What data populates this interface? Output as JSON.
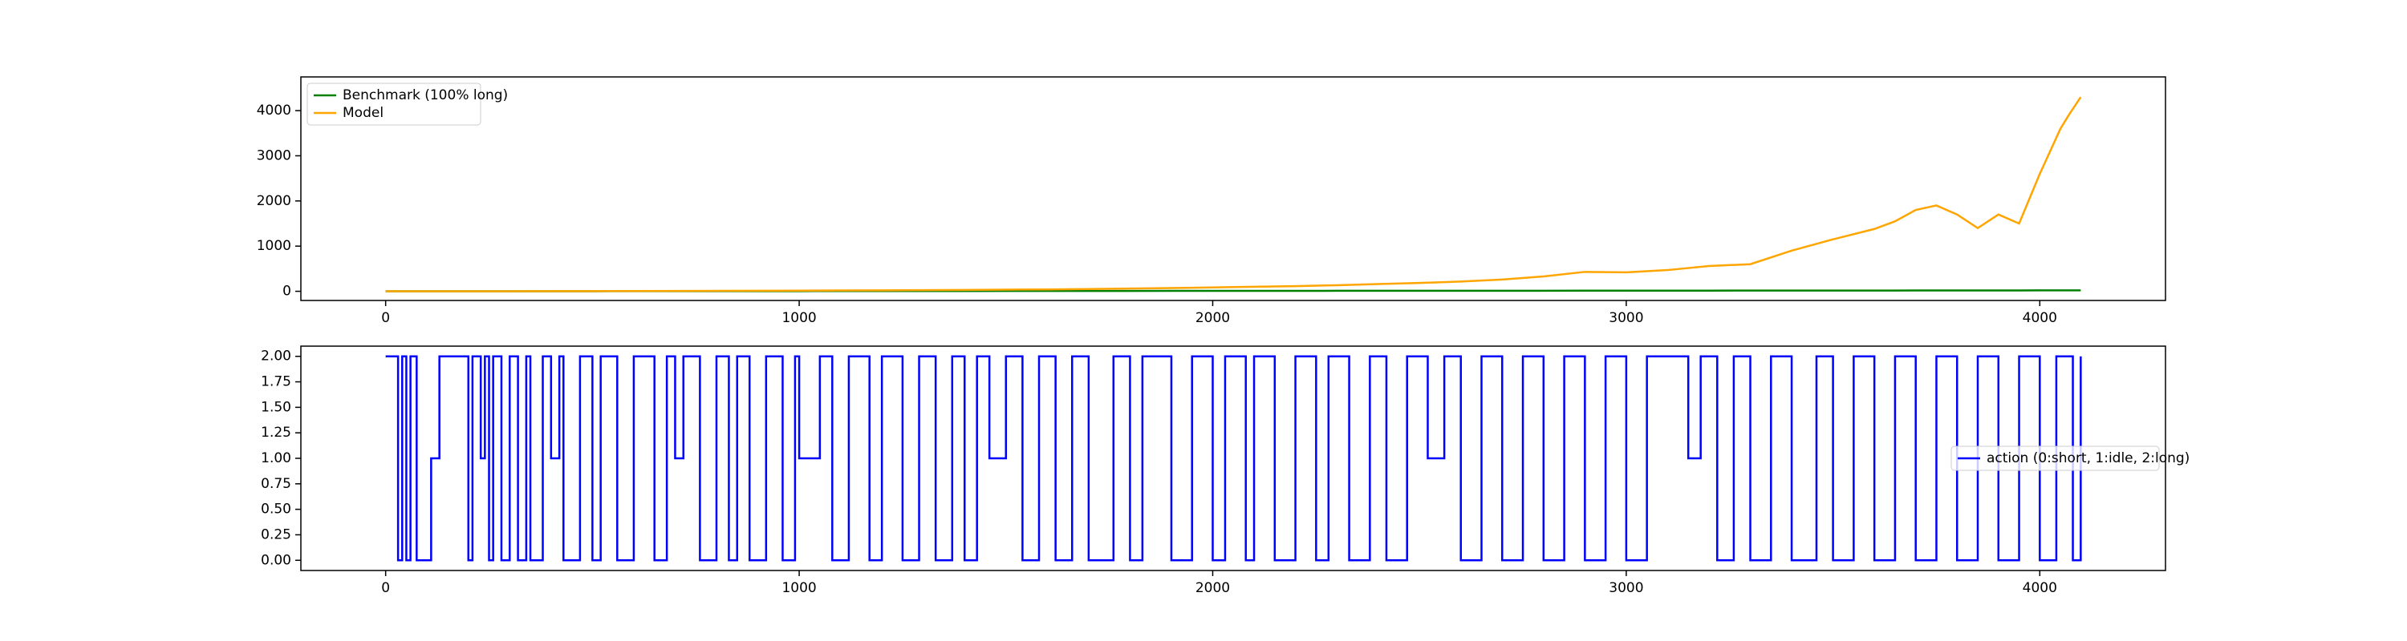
{
  "chart_data": [
    {
      "type": "line",
      "x": [
        0,
        100,
        200,
        300,
        400,
        500,
        600,
        700,
        800,
        900,
        1000,
        1100,
        1200,
        1300,
        1400,
        1500,
        1600,
        1700,
        1800,
        1900,
        2000,
        2100,
        2200,
        2300,
        2400,
        2500,
        2600,
        2700,
        2800,
        2900,
        3000,
        3100,
        3200,
        3300,
        3400,
        3500,
        3600,
        3650,
        3700,
        3750,
        3800,
        3850,
        3900,
        3950,
        4000,
        4050,
        4070,
        4099
      ],
      "series": [
        {
          "name": "Benchmark (100% long)",
          "color": "#008000",
          "values": [
            1,
            1,
            1,
            2,
            2,
            2,
            3,
            3,
            3,
            4,
            4,
            5,
            5,
            6,
            6,
            7,
            7,
            8,
            8,
            9,
            9,
            10,
            10,
            11,
            11,
            12,
            12,
            13,
            13,
            14,
            14,
            15,
            15,
            16,
            16,
            17,
            17,
            17,
            18,
            18,
            18,
            19,
            19,
            19,
            20,
            20,
            20,
            20
          ]
        },
        {
          "name": "Model",
          "color": "#ffa500",
          "values": [
            1,
            1,
            2,
            2,
            3,
            4,
            5,
            7,
            9,
            12,
            15,
            18,
            22,
            26,
            30,
            36,
            42,
            50,
            60,
            72,
            85,
            100,
            115,
            135,
            160,
            185,
            215,
            260,
            330,
            430,
            420,
            470,
            560,
            600,
            900,
            1150,
            1380,
            1550,
            1800,
            1900,
            1700,
            1400,
            1700,
            1500,
            2600,
            3600,
            3900,
            4300
          ]
        }
      ],
      "xlim": [
        -205,
        4304
      ],
      "xticks": [
        0,
        1000,
        2000,
        3000,
        4000
      ],
      "ylim": [
        -203,
        4746
      ],
      "yticks": [
        0,
        1000,
        2000,
        3000,
        4000
      ],
      "legend": "upper left",
      "grid": false
    },
    {
      "type": "step",
      "x": [
        0,
        30,
        40,
        50,
        60,
        75,
        110,
        130,
        200,
        210,
        230,
        240,
        250,
        260,
        280,
        300,
        320,
        340,
        350,
        380,
        400,
        420,
        430,
        470,
        500,
        520,
        560,
        600,
        650,
        680,
        700,
        720,
        760,
        800,
        830,
        850,
        880,
        920,
        960,
        990,
        1000,
        1050,
        1080,
        1120,
        1170,
        1200,
        1250,
        1290,
        1330,
        1370,
        1400,
        1430,
        1460,
        1500,
        1540,
        1580,
        1620,
        1660,
        1700,
        1760,
        1800,
        1830,
        1900,
        1950,
        2000,
        2030,
        2080,
        2100,
        2150,
        2200,
        2250,
        2280,
        2330,
        2380,
        2420,
        2470,
        2520,
        2560,
        2600,
        2650,
        2700,
        2750,
        2800,
        2850,
        2900,
        2950,
        3000,
        3050,
        3150,
        3180,
        3220,
        3260,
        3300,
        3350,
        3400,
        3460,
        3500,
        3550,
        3600,
        3650,
        3700,
        3750,
        3800,
        3850,
        3900,
        3950,
        4000,
        4040,
        4080,
        4099
      ],
      "series": [
        {
          "name": "action (0:short, 1:idle, 2:long)",
          "color": "#0000ff",
          "values": [
            2,
            0,
            2,
            0,
            2,
            0,
            1,
            2,
            0,
            2,
            1,
            2,
            0,
            2,
            0,
            2,
            0,
            2,
            0,
            2,
            1,
            2,
            0,
            2,
            0,
            2,
            0,
            2,
            0,
            2,
            1,
            2,
            0,
            2,
            0,
            2,
            0,
            2,
            0,
            2,
            1,
            2,
            0,
            2,
            0,
            2,
            0,
            2,
            0,
            2,
            0,
            2,
            1,
            2,
            0,
            2,
            0,
            2,
            0,
            2,
            0,
            2,
            0,
            2,
            0,
            2,
            0,
            2,
            0,
            2,
            0,
            2,
            0,
            2,
            0,
            2,
            1,
            2,
            0,
            2,
            0,
            2,
            0,
            2,
            0,
            2,
            0,
            2,
            1,
            2,
            0,
            2,
            0,
            2,
            0,
            2,
            0,
            2,
            0,
            2,
            0,
            2,
            0,
            2,
            0,
            2,
            0,
            2,
            0,
            2
          ]
        }
      ],
      "xlim": [
        -205,
        4304
      ],
      "xticks": [
        0,
        1000,
        2000,
        3000,
        4000
      ],
      "ylim": [
        -0.1,
        2.1
      ],
      "yticks": [
        {
          "value": 0,
          "label": "0.00"
        },
        {
          "value": 0.25,
          "label": "0.25"
        },
        {
          "value": 0.5,
          "label": "0.50"
        },
        {
          "value": 0.75,
          "label": "0.75"
        },
        {
          "value": 1,
          "label": "1.00"
        },
        {
          "value": 1.25,
          "label": "1.25"
        },
        {
          "value": 1.5,
          "label": "1.50"
        },
        {
          "value": 1.75,
          "label": "1.75"
        },
        {
          "value": 2,
          "label": "2.00"
        }
      ],
      "legend": "center right",
      "grid": false
    }
  ]
}
